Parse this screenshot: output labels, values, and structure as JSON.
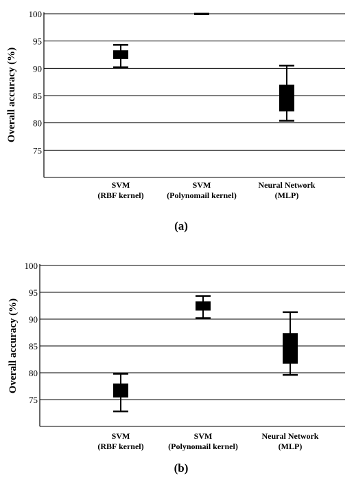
{
  "chart_data": [
    {
      "type": "box",
      "panel_label": "(a)",
      "ylabel": "Overall accuracy (%)",
      "ylim": [
        70,
        100
      ],
      "yticks": [
        75,
        80,
        85,
        90,
        95,
        100
      ],
      "grid": true,
      "categories": [
        [
          "SVM",
          "(RBF kernel)"
        ],
        [
          "SVM",
          "(Polynomail kernel)"
        ],
        [
          "Neural Network",
          "(MLP)"
        ]
      ],
      "boxes": [
        {
          "min": 90.2,
          "q1": 91.7,
          "q3": 93.3,
          "max": 94.3
        },
        {
          "min": 100,
          "q1": 100,
          "q3": 100,
          "max": 100
        },
        {
          "min": 80.4,
          "q1": 82.1,
          "q3": 87.0,
          "max": 90.5
        }
      ]
    },
    {
      "type": "box",
      "panel_label": "(b)",
      "ylabel": "Overall accuracy (%)",
      "ylim": [
        70,
        100
      ],
      "yticks": [
        75,
        80,
        85,
        90,
        95,
        100
      ],
      "grid": true,
      "categories": [
        [
          "SVM",
          "(RBF kernel)"
        ],
        [
          "SVM",
          "(Polynomail kernel)"
        ],
        [
          "Neural Network",
          "(MLP)"
        ]
      ],
      "boxes": [
        {
          "min": 72.8,
          "q1": 75.4,
          "q3": 78.0,
          "max": 79.8
        },
        {
          "min": 90.2,
          "q1": 91.6,
          "q3": 93.3,
          "max": 94.3
        },
        {
          "min": 79.6,
          "q1": 81.7,
          "q3": 87.4,
          "max": 91.3
        }
      ]
    }
  ]
}
